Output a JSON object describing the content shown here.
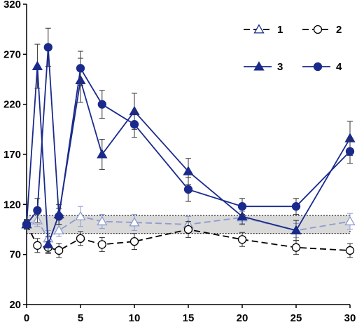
{
  "chart_data": {
    "type": "line",
    "title": "",
    "xlabel": "",
    "ylabel": "",
    "xlim": [
      0,
      30
    ],
    "ylim": [
      20,
      320
    ],
    "x_ticks": [
      0,
      5,
      10,
      15,
      20,
      25,
      30
    ],
    "y_ticks": [
      20,
      70,
      120,
      170,
      220,
      270,
      320
    ],
    "grid": false,
    "legend_position": "top-right",
    "reference_band": {
      "y_low": 91,
      "y_high": 109,
      "color": "#d9d9d9"
    },
    "series": [
      {
        "name": "1",
        "marker": "triangle-open",
        "line": "dashed",
        "color": "#8c9bd0",
        "x": [
          0,
          1,
          2,
          3,
          5,
          7,
          10,
          15,
          20,
          25,
          30
        ],
        "y": [
          100,
          104,
          86,
          94,
          108,
          103,
          102,
          100,
          107,
          94,
          103
        ],
        "err": [
          4,
          6,
          8,
          6,
          10,
          7,
          8,
          8,
          6,
          7,
          8
        ]
      },
      {
        "name": "2",
        "marker": "circle-open",
        "line": "dashed",
        "color": "#000000",
        "x": [
          0,
          1,
          2,
          3,
          5,
          7,
          10,
          15,
          20,
          25,
          30
        ],
        "y": [
          100,
          79,
          77,
          74,
          86,
          80,
          83,
          95,
          85,
          77,
          74
        ],
        "err": [
          4,
          7,
          6,
          7,
          7,
          7,
          8,
          8,
          7,
          7,
          7
        ]
      },
      {
        "name": "3",
        "marker": "triangle-filled",
        "line": "solid",
        "color": "#1a2a8c",
        "x": [
          0,
          1,
          2,
          3,
          5,
          7,
          10,
          15,
          20,
          25,
          30
        ],
        "y": [
          100,
          258,
          80,
          110,
          244,
          170,
          213,
          153,
          108,
          94,
          186
        ],
        "err": [
          5,
          22,
          8,
          10,
          22,
          15,
          18,
          13,
          8,
          10,
          17
        ]
      },
      {
        "name": "4",
        "marker": "circle-filled",
        "line": "solid",
        "color": "#1a2a8c",
        "x": [
          0,
          1,
          2,
          3,
          5,
          7,
          10,
          15,
          20,
          25,
          30
        ],
        "y": [
          100,
          114,
          277,
          108,
          256,
          220,
          200,
          135,
          118,
          118,
          173
        ],
        "err": [
          5,
          12,
          19,
          8,
          17,
          14,
          13,
          12,
          8,
          8,
          12
        ]
      }
    ]
  }
}
